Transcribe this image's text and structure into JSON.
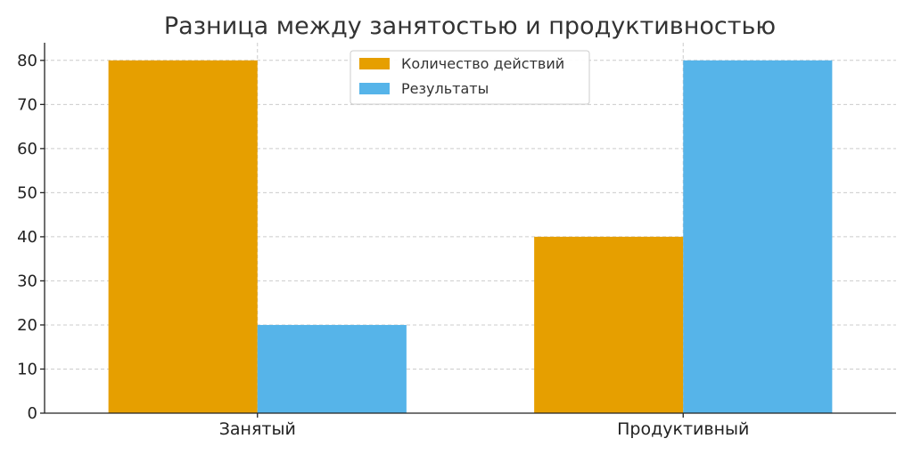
{
  "chart_data": {
    "type": "bar",
    "title": "Разница между занятостью и продуктивностью",
    "xlabel": "",
    "ylabel": "",
    "categories": [
      "Занятый",
      "Продуктивный"
    ],
    "series": [
      {
        "name": "Количество действий",
        "values": [
          80,
          40
        ],
        "color": "#E69F00"
      },
      {
        "name": "Результаты",
        "values": [
          20,
          80
        ],
        "color": "#56B4E9"
      }
    ],
    "ylim": [
      0,
      84
    ],
    "yticks": [
      0,
      10,
      20,
      30,
      40,
      50,
      60,
      70,
      80
    ],
    "grid": true,
    "legend_position": "top-center"
  }
}
